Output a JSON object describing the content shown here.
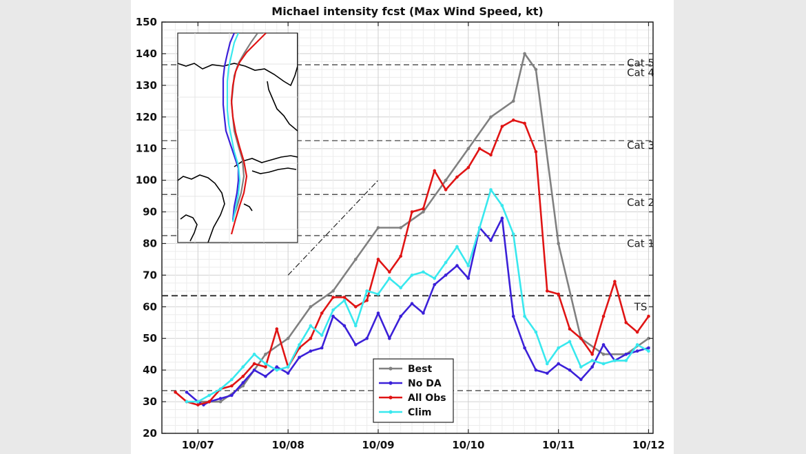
{
  "chart_data": {
    "type": "line",
    "title": "Michael intensity fcst (Max Wind Speed, kt)",
    "xlabel": "",
    "ylabel": "",
    "ylim": [
      20,
      150
    ],
    "xlim": [
      6.6,
      12.05
    ],
    "yticks": [
      20,
      30,
      40,
      50,
      60,
      70,
      80,
      90,
      100,
      110,
      120,
      130,
      140,
      150
    ],
    "xticks": [
      {
        "value": 7,
        "label": "10/07"
      },
      {
        "value": 8,
        "label": "10/08"
      },
      {
        "value": 9,
        "label": "10/09"
      },
      {
        "value": 10,
        "label": "10/10"
      },
      {
        "value": 11,
        "label": "10/11"
      },
      {
        "value": 12,
        "label": "10/12"
      }
    ],
    "grid": true,
    "legend_position": "bottom-center",
    "thresholds": [
      {
        "label": "Cat 5",
        "value": 136.5,
        "upper": 137,
        "style": "dashed"
      },
      {
        "label": "Cat 4",
        "value": 112.5,
        "upper": 134,
        "style": "dashed"
      },
      {
        "label": "Cat 3",
        "value": 95.5,
        "upper": 111,
        "style": "dashed"
      },
      {
        "label": "Cat 2",
        "value": 82.5,
        "upper": 93,
        "style": "dashed"
      },
      {
        "label": "Cat 1",
        "value": 63.5,
        "upper": 80,
        "style": "dashed-bold"
      },
      {
        "label": "TS",
        "value": 33.5,
        "upper": 60,
        "style": "dashed"
      }
    ],
    "series": [
      {
        "name": "Best",
        "color": "#808080",
        "x": [
          7.0,
          7.125,
          7.25,
          7.5,
          7.75,
          8.0,
          8.25,
          8.5,
          8.75,
          9.0,
          9.25,
          9.5,
          9.75,
          10.0,
          10.25,
          10.5,
          10.625,
          10.75,
          11.0,
          11.25,
          11.5,
          11.75,
          12.0
        ],
        "values": [
          30,
          30,
          30,
          35,
          45,
          50,
          60,
          65,
          75,
          85,
          85,
          90,
          100,
          110,
          120,
          125,
          140,
          135,
          80,
          50,
          45,
          45,
          50
        ]
      },
      {
        "name": "No DA",
        "color": "#3b20d8",
        "x": [
          6.875,
          7.0,
          7.0625,
          7.125,
          7.25,
          7.375,
          7.5,
          7.625,
          7.75,
          7.875,
          8.0,
          8.125,
          8.25,
          8.375,
          8.5,
          8.625,
          8.75,
          8.875,
          9.0,
          9.125,
          9.25,
          9.375,
          9.5,
          9.625,
          9.75,
          9.875,
          10.0,
          10.125,
          10.25,
          10.375,
          10.5,
          10.625,
          10.75,
          10.875,
          11.0,
          11.125,
          11.25,
          11.375,
          11.5,
          11.625,
          11.75,
          11.875,
          12.0
        ],
        "values": [
          33,
          30,
          29,
          30,
          31,
          32,
          36,
          40,
          38,
          41,
          39,
          44,
          46,
          47,
          57,
          54,
          48,
          50,
          58,
          50,
          57,
          61,
          58,
          67,
          70,
          73,
          69,
          85,
          81,
          88,
          57,
          47,
          40,
          39,
          42,
          40,
          37,
          41,
          48,
          43,
          45,
          46,
          47
        ]
      },
      {
        "name": "All Obs",
        "color": "#e01414",
        "x": [
          6.75,
          6.875,
          7.0,
          7.125,
          7.25,
          7.375,
          7.5,
          7.625,
          7.75,
          7.875,
          8.0,
          8.125,
          8.25,
          8.375,
          8.5,
          8.625,
          8.75,
          8.875,
          9.0,
          9.125,
          9.25,
          9.375,
          9.5,
          9.625,
          9.75,
          9.875,
          10.0,
          10.125,
          10.25,
          10.375,
          10.5,
          10.625,
          10.75,
          10.875,
          11.0,
          11.125,
          11.25,
          11.375,
          11.5,
          11.625,
          11.75,
          11.875,
          12.0
        ],
        "values": [
          33,
          30,
          29,
          30,
          34,
          35,
          38,
          42,
          41,
          53,
          41,
          47,
          50,
          58,
          63,
          63,
          60,
          62,
          75,
          71,
          76,
          90,
          91,
          103,
          97,
          101,
          104,
          110,
          108,
          117,
          119,
          118,
          109,
          65,
          64,
          53,
          50,
          45,
          57,
          68,
          55,
          52,
          57
        ]
      },
      {
        "name": "Clim",
        "color": "#38e8ee",
        "x": [
          6.875,
          7.0,
          7.125,
          7.25,
          7.375,
          7.5,
          7.625,
          7.75,
          7.875,
          8.0,
          8.125,
          8.25,
          8.375,
          8.5,
          8.625,
          8.75,
          8.875,
          9.0,
          9.125,
          9.25,
          9.375,
          9.5,
          9.625,
          9.75,
          9.875,
          10.0,
          10.125,
          10.25,
          10.375,
          10.5,
          10.625,
          10.75,
          10.875,
          11.0,
          11.125,
          11.25,
          11.375,
          11.5,
          11.625,
          11.75,
          11.875,
          12.0
        ],
        "values": [
          30,
          30,
          32,
          34,
          37,
          41,
          45,
          42,
          40,
          41,
          48,
          54,
          51,
          59,
          62,
          54,
          65,
          64,
          69,
          66,
          70,
          71,
          69,
          74,
          79,
          73,
          85,
          97,
          92,
          83,
          57,
          52,
          42,
          47,
          49,
          41,
          43,
          42,
          43,
          43,
          48,
          46
        ]
      }
    ],
    "annotations": [
      {
        "type": "dash-dot reference line",
        "x": [
          8.0,
          9.0
        ],
        "y": [
          70,
          100
        ]
      }
    ],
    "inset": {
      "type": "map",
      "content": "forecast tracks over Gulf of Mexico and Florida",
      "tracks": [
        "Best",
        "No DA",
        "All Obs",
        "Clim"
      ]
    }
  }
}
